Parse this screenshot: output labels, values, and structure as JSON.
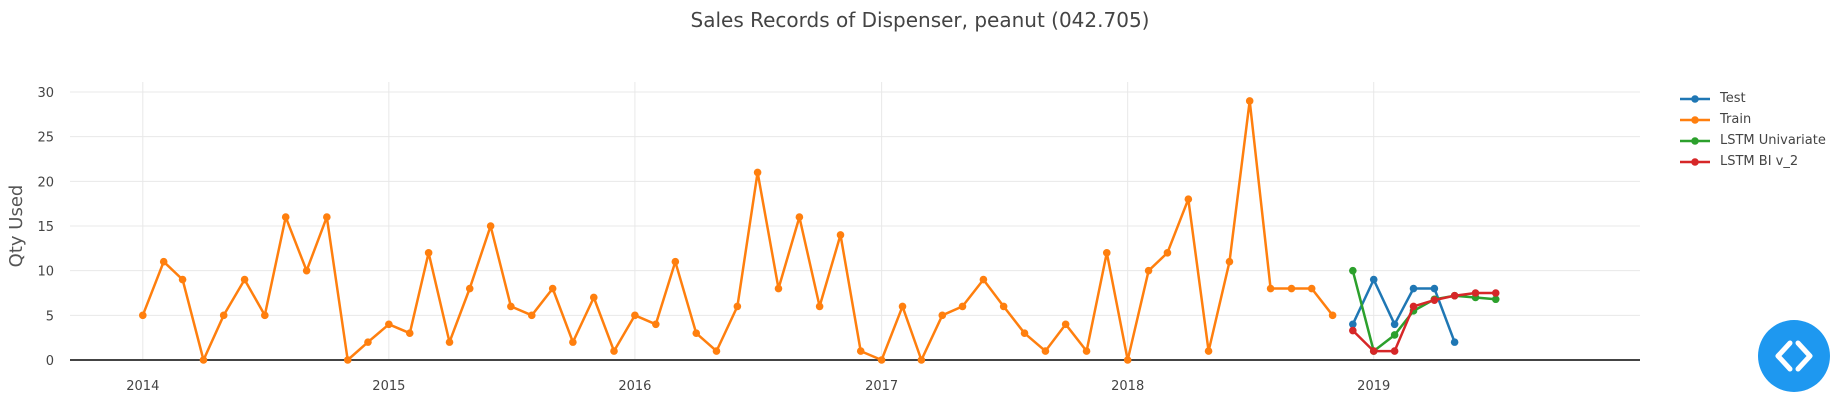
{
  "chart_data": {
    "type": "line",
    "title": "Sales Records of Dispenser, peanut  (042.705)",
    "ylabel": "Qty Used",
    "xlabel": "",
    "ylim": [
      0,
      30
    ],
    "xlim": [
      "2013-09-15",
      "2020-01-31"
    ],
    "yticks": [
      0,
      5,
      10,
      15,
      20,
      25,
      30
    ],
    "xticks": [
      {
        "date": "2014-01-01",
        "label": "2014"
      },
      {
        "date": "2015-01-01",
        "label": "2015"
      },
      {
        "date": "2016-01-01",
        "label": "2016"
      },
      {
        "date": "2017-01-01",
        "label": "2017"
      },
      {
        "date": "2018-01-01",
        "label": "2018"
      },
      {
        "date": "2019-01-01",
        "label": "2019"
      }
    ],
    "grid": true,
    "legend_position": "top-right",
    "series": [
      {
        "name": "Test",
        "color": "#1f77b4",
        "points": [
          [
            "2018-12-01",
            4
          ],
          [
            "2019-01-01",
            9
          ],
          [
            "2019-02-01",
            4
          ],
          [
            "2019-03-01",
            8
          ],
          [
            "2019-04-01",
            8
          ],
          [
            "2019-05-01",
            2
          ]
        ]
      },
      {
        "name": "Train",
        "color": "#ff7f0e",
        "points": [
          [
            "2014-01-01",
            5
          ],
          [
            "2014-02-01",
            11
          ],
          [
            "2014-03-01",
            9
          ],
          [
            "2014-04-01",
            0
          ],
          [
            "2014-05-01",
            5
          ],
          [
            "2014-06-01",
            9
          ],
          [
            "2014-07-01",
            5
          ],
          [
            "2014-08-01",
            16
          ],
          [
            "2014-09-01",
            10
          ],
          [
            "2014-10-01",
            16
          ],
          [
            "2014-11-01",
            0
          ],
          [
            "2014-12-01",
            2
          ],
          [
            "2015-01-01",
            4
          ],
          [
            "2015-02-01",
            3
          ],
          [
            "2015-03-01",
            12
          ],
          [
            "2015-04-01",
            2
          ],
          [
            "2015-05-01",
            8
          ],
          [
            "2015-06-01",
            15
          ],
          [
            "2015-07-01",
            6
          ],
          [
            "2015-08-01",
            5
          ],
          [
            "2015-09-01",
            8
          ],
          [
            "2015-10-01",
            2
          ],
          [
            "2015-11-01",
            7
          ],
          [
            "2015-12-01",
            1
          ],
          [
            "2016-01-01",
            5
          ],
          [
            "2016-02-01",
            4
          ],
          [
            "2016-03-01",
            11
          ],
          [
            "2016-04-01",
            3
          ],
          [
            "2016-05-01",
            1
          ],
          [
            "2016-06-01",
            6
          ],
          [
            "2016-07-01",
            21
          ],
          [
            "2016-08-01",
            8
          ],
          [
            "2016-09-01",
            16
          ],
          [
            "2016-10-01",
            6
          ],
          [
            "2016-11-01",
            14
          ],
          [
            "2016-12-01",
            1
          ],
          [
            "2017-01-01",
            0
          ],
          [
            "2017-02-01",
            6
          ],
          [
            "2017-03-01",
            0
          ],
          [
            "2017-04-01",
            5
          ],
          [
            "2017-05-01",
            6
          ],
          [
            "2017-06-01",
            9
          ],
          [
            "2017-07-01",
            6
          ],
          [
            "2017-08-01",
            3
          ],
          [
            "2017-09-01",
            1
          ],
          [
            "2017-10-01",
            4
          ],
          [
            "2017-11-01",
            1
          ],
          [
            "2017-12-01",
            12
          ],
          [
            "2018-01-01",
            0
          ],
          [
            "2018-02-01",
            10
          ],
          [
            "2018-03-01",
            12
          ],
          [
            "2018-04-01",
            18
          ],
          [
            "2018-05-01",
            1
          ],
          [
            "2018-06-01",
            11
          ],
          [
            "2018-07-01",
            29
          ],
          [
            "2018-08-01",
            8
          ],
          [
            "2018-09-01",
            8
          ],
          [
            "2018-10-01",
            8
          ],
          [
            "2018-11-01",
            5
          ]
        ]
      },
      {
        "name": "LSTM Univariate",
        "color": "#2ca02c",
        "points": [
          [
            "2018-12-01",
            10
          ],
          [
            "2019-01-01",
            1
          ],
          [
            "2019-02-01",
            2.8
          ],
          [
            "2019-03-01",
            5.5
          ],
          [
            "2019-04-01",
            6.8
          ],
          [
            "2019-05-01",
            7.2
          ],
          [
            "2019-06-01",
            7
          ],
          [
            "2019-07-01",
            6.8
          ]
        ]
      },
      {
        "name": "LSTM BI v_2",
        "color": "#d62728",
        "points": [
          [
            "2018-12-01",
            3.3
          ],
          [
            "2019-01-01",
            1
          ],
          [
            "2019-02-01",
            1
          ],
          [
            "2019-03-01",
            6
          ],
          [
            "2019-04-01",
            6.7
          ],
          [
            "2019-05-01",
            7.2
          ],
          [
            "2019-06-01",
            7.5
          ],
          [
            "2019-07-01",
            7.5
          ]
        ]
      }
    ]
  },
  "code_button": {
    "icon": "code-icon",
    "color": "#1e98f0"
  }
}
